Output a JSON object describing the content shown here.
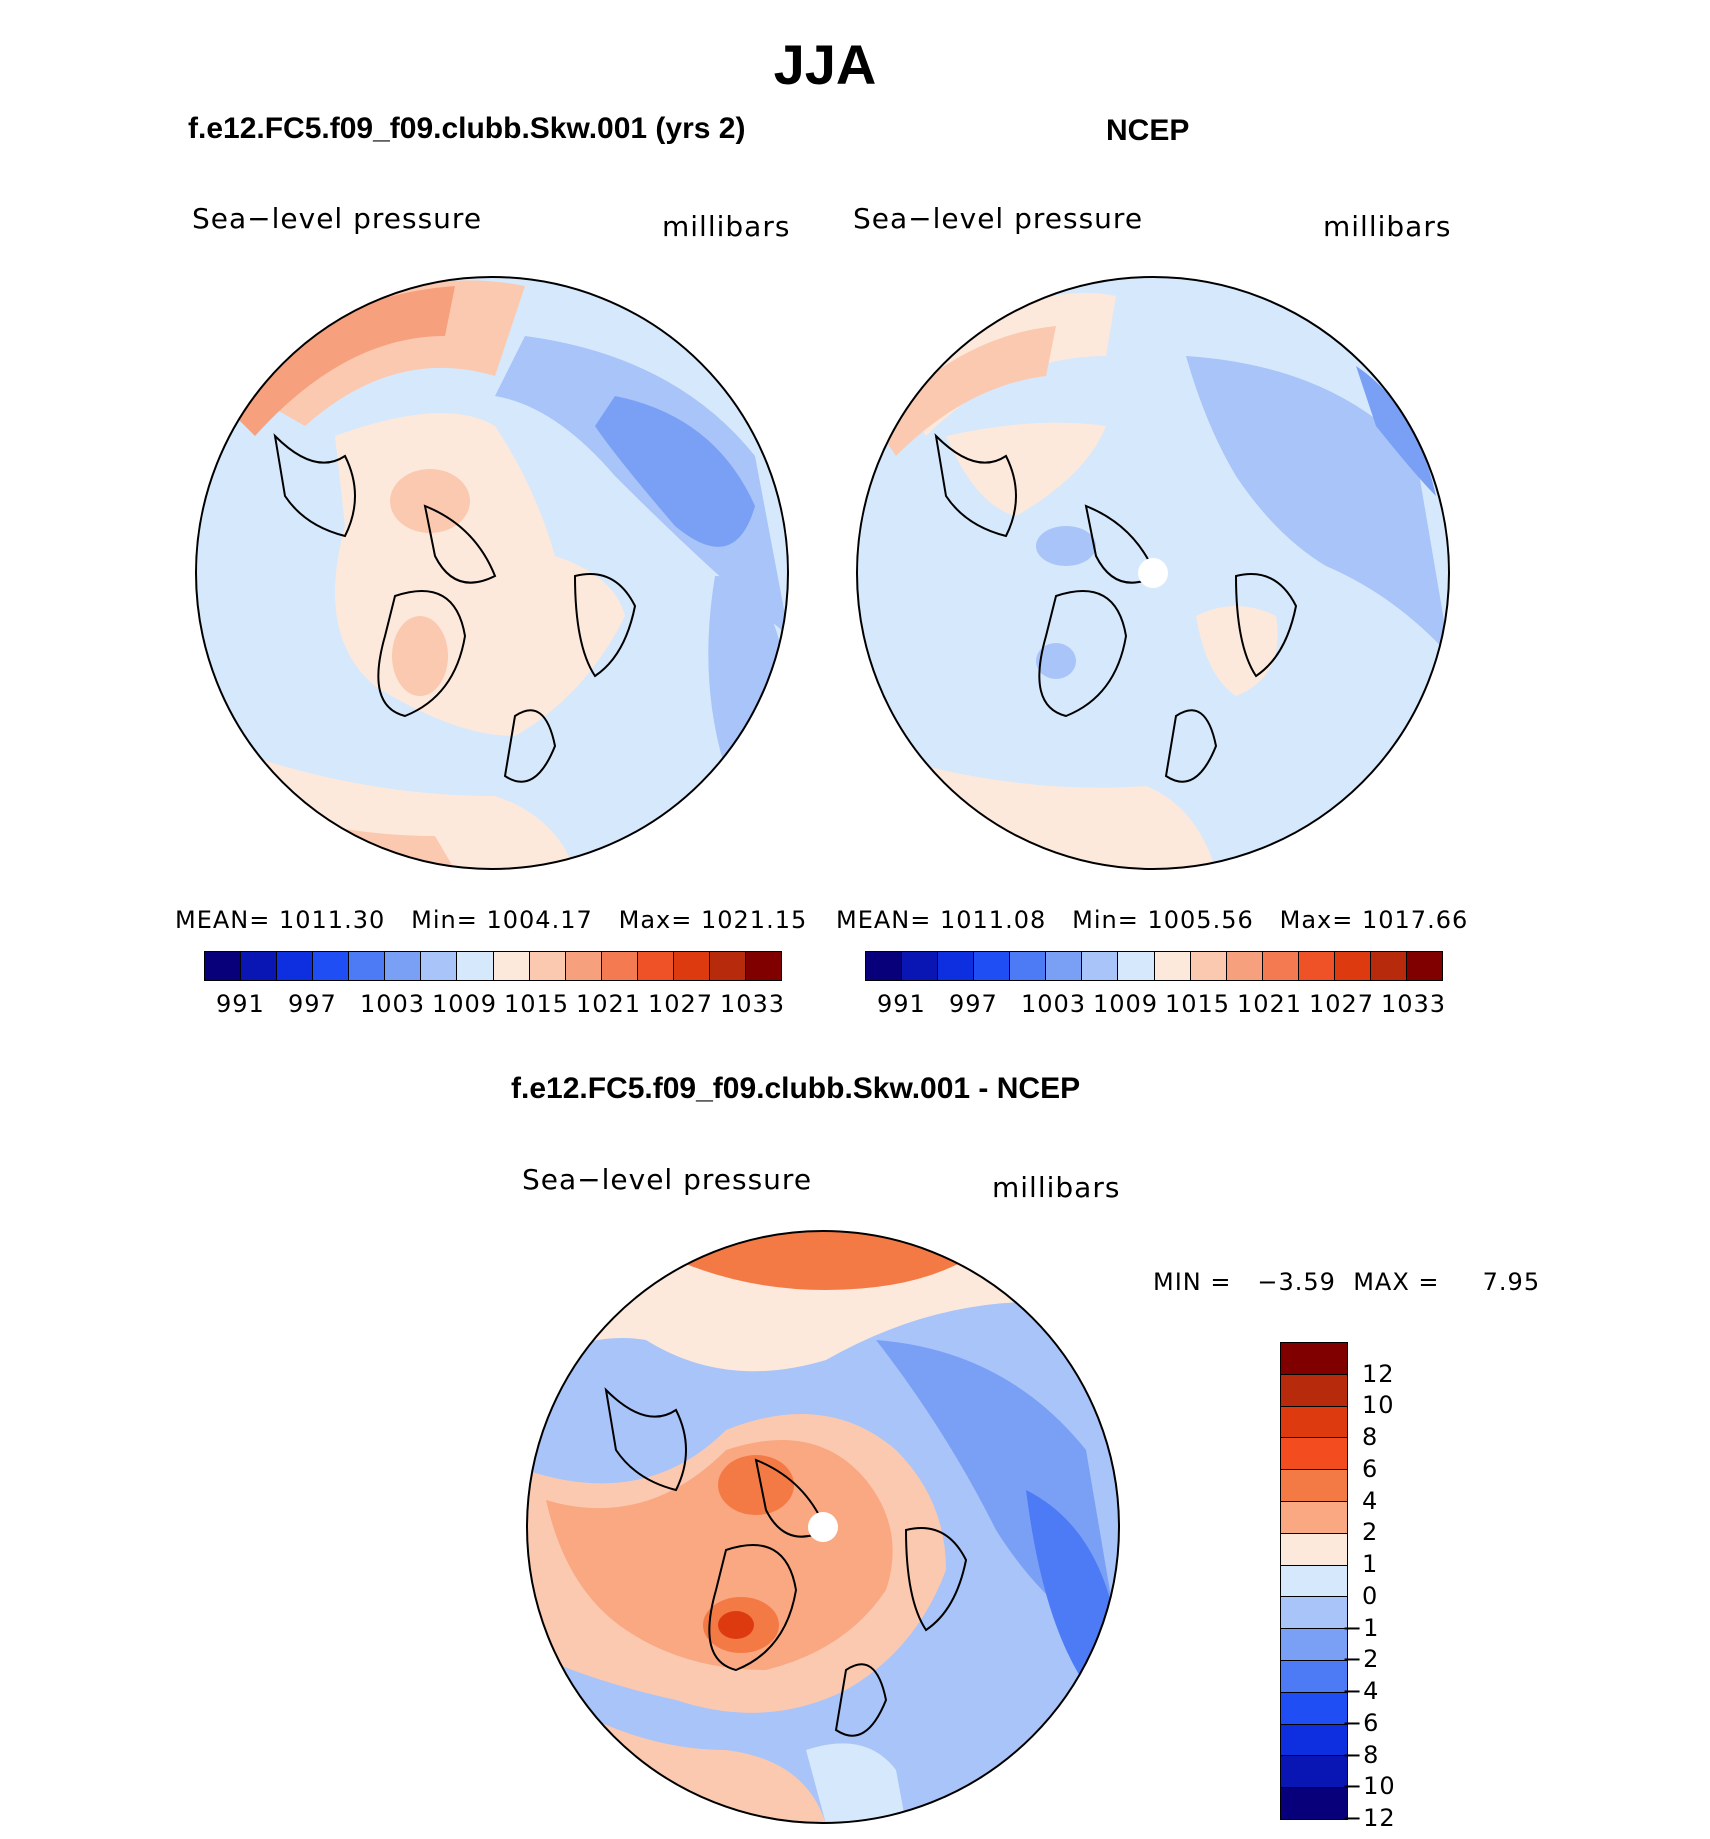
{
  "title": "JJA",
  "panels": [
    {
      "id": "model",
      "title": "f.e12.FC5.f09_f09.clubb.Skw.001 (yrs 2)",
      "variable": "Sea−level pressure",
      "units": "millibars",
      "stats": {
        "mean_label": "MEAN=",
        "mean": "1011.30",
        "min_label": "Min=",
        "min": "1004.17",
        "max_label": "Max=",
        "max": "1021.15"
      }
    },
    {
      "id": "obs",
      "title": "NCEP",
      "variable": "Sea−level pressure",
      "units": "millibars",
      "stats": {
        "mean_label": "MEAN=",
        "mean": "1011.08",
        "min_label": "Min=",
        "min": "1005.56",
        "max_label": "Max=",
        "max": "1017.66"
      }
    },
    {
      "id": "diff",
      "title": "f.e12.FC5.f09_f09.clubb.Skw.001 - NCEP",
      "variable": "Sea−level pressure",
      "units": "millibars",
      "stats": {
        "min_label": "MIN =",
        "min": "−3.59",
        "max_label": "MAX =",
        "max": "7.95"
      }
    }
  ],
  "abs_colorbar": {
    "colors": [
      "#08007a",
      "#0a16b4",
      "#0d2fe0",
      "#1f4ef5",
      "#4d7bf5",
      "#7aa0f5",
      "#a8c4f8",
      "#d6e8fb",
      "#fde9dc",
      "#fbc9b0",
      "#f7a07e",
      "#f47a52",
      "#ef5226",
      "#de3a10",
      "#b72a0c",
      "#800000"
    ],
    "tick_labels": [
      "991",
      "997",
      "1003",
      "1009",
      "1015",
      "1021",
      "1027",
      "1033"
    ]
  },
  "diff_colorbar": {
    "colors": [
      "#800000",
      "#b72a0c",
      "#de3a10",
      "#f24c1f",
      "#f47a45",
      "#f9a882",
      "#fde9dc",
      "#d6e8fb",
      "#a8c4f8",
      "#7aa0f5",
      "#4d7bf5",
      "#1f4ef5",
      "#0d2fe0",
      "#0a16b4",
      "#08007a"
    ],
    "tick_labels": [
      "12",
      "10",
      "8",
      "6",
      "4",
      "2",
      "1",
      "0",
      "−1",
      "−2",
      "−4",
      "−6",
      "−8",
      "−10",
      "−12"
    ]
  },
  "map_colors": {
    "light_blue": "#d6e8fb",
    "mid_blue": "#a8c4f8",
    "blue": "#7aa0f5",
    "light_orange": "#fde9dc",
    "orange": "#f9a882",
    "dark_orange": "#f47a45",
    "red": "#de3a10"
  }
}
